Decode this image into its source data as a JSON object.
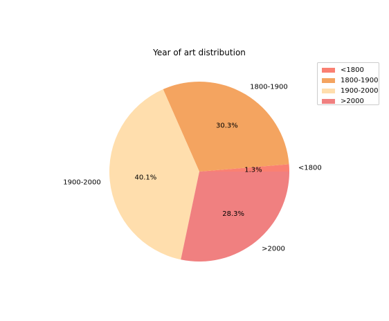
{
  "chart_data": {
    "type": "pie",
    "title": "Year of art distribution",
    "categories": [
      "<1800",
      "1800-1900",
      "1900-2000",
      ">2000"
    ],
    "values": [
      1.3,
      30.3,
      40.1,
      28.3
    ],
    "value_labels": [
      "1.3%",
      "30.3%",
      "40.1%",
      "28.3%"
    ],
    "colors": [
      "#fa8072",
      "#f4a460",
      "#ffdead",
      "#f08080"
    ],
    "start_angle_deg": 0,
    "direction": "counterclockwise",
    "legend_position": "upper-right"
  }
}
